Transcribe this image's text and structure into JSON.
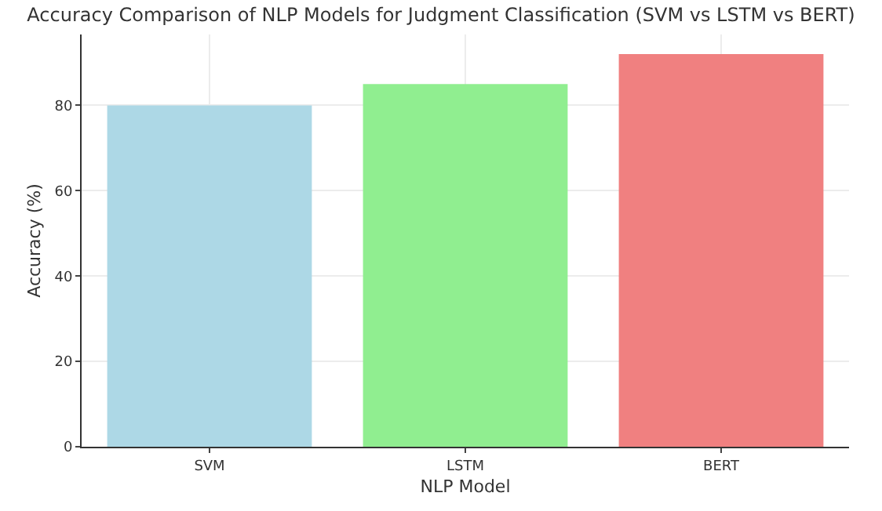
{
  "chart_data": {
    "type": "bar",
    "title": "Accuracy Comparison of NLP Models for Judgment Classification (SVM vs LSTM vs BERT)",
    "xlabel": "NLP Model",
    "ylabel": "Accuracy (%)",
    "categories": [
      "SVM",
      "LSTM",
      "BERT"
    ],
    "values": [
      80,
      85,
      92
    ],
    "colors": [
      "#add8e6",
      "#90ee90",
      "#f08080"
    ],
    "ylim": [
      0,
      96.6
    ],
    "yticks": [
      0,
      20,
      40,
      60,
      80
    ],
    "grid": true
  }
}
